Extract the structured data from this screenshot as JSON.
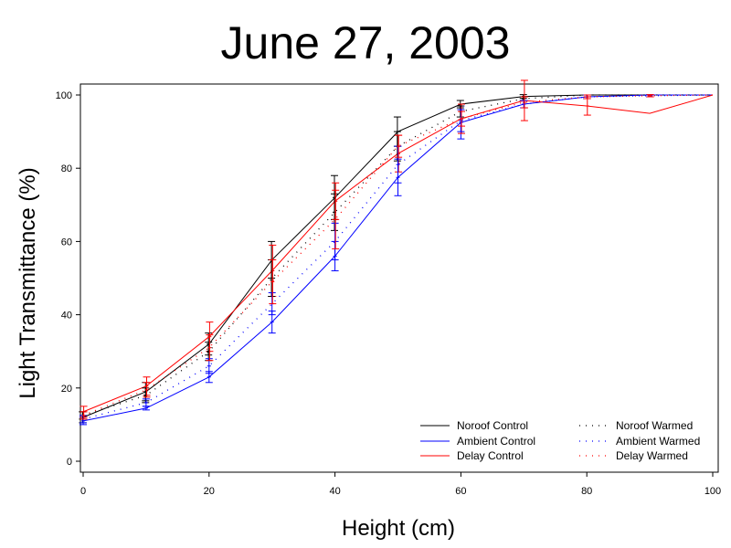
{
  "chart_data": {
    "type": "line",
    "title": "June 27, 2003",
    "xlabel": "Height (cm)",
    "ylabel": "Light Transmittance (%)",
    "xlim": [
      0,
      100
    ],
    "ylim": [
      0,
      100
    ],
    "x_ticks": [
      "0",
      "20",
      "40",
      "60",
      "80",
      "100"
    ],
    "y_ticks": [
      "0",
      "20",
      "40",
      "60",
      "80",
      "100"
    ],
    "x_tick_values": [
      0,
      20,
      40,
      60,
      80,
      100
    ],
    "y_tick_values": [
      0,
      20,
      40,
      60,
      80,
      100
    ],
    "grid": false,
    "legend_position": "bottom-right",
    "x": [
      0,
      10,
      20,
      30,
      40,
      50,
      60,
      70,
      80,
      90,
      100
    ],
    "series": [
      {
        "name": "Noroof Control",
        "color": "#000000",
        "style": "solid",
        "values": [
          12,
          19,
          32,
          55,
          72,
          90,
          97.5,
          99.6,
          100,
          100,
          100
        ],
        "err": [
          1.5,
          2.5,
          3,
          5,
          6,
          4,
          1,
          0.5,
          0,
          0,
          0
        ]
      },
      {
        "name": "Ambient Control",
        "color": "#0000ff",
        "style": "solid",
        "values": [
          11,
          14.5,
          23,
          38,
          56,
          77.5,
          92.5,
          97.5,
          99.5,
          100,
          100
        ],
        "err": [
          1,
          0.5,
          1.5,
          3,
          4,
          5,
          4.5,
          1,
          0.5,
          0,
          0
        ]
      },
      {
        "name": "Delay Control",
        "color": "#ff0000",
        "style": "solid",
        "values": [
          13.5,
          20.5,
          34,
          52,
          71,
          84,
          93.5,
          98.5,
          97,
          95,
          100
        ],
        "err": [
          1.5,
          2.5,
          4,
          7,
          5,
          5,
          4,
          5.5,
          2.5,
          0,
          0
        ]
      },
      {
        "name": "Noroof Warmed",
        "color": "#000000",
        "style": "dotted",
        "values": [
          12.5,
          18,
          30,
          50,
          68,
          86,
          95.5,
          99,
          100,
          100,
          100
        ],
        "err": [
          1,
          2,
          2.5,
          5,
          5,
          4,
          1.5,
          0.5,
          0,
          0,
          0
        ]
      },
      {
        "name": "Ambient Warmed",
        "color": "#0000ff",
        "style": "dotted",
        "values": [
          11.5,
          16,
          26,
          43,
          60,
          81,
          93,
          97.5,
          99.5,
          99.8,
          100
        ],
        "err": [
          1,
          1,
          2,
          3,
          5,
          5,
          3,
          1,
          0.5,
          0.3,
          0
        ]
      },
      {
        "name": "Delay Warmed",
        "color": "#ff0000",
        "style": "dotted",
        "values": [
          12.5,
          19.5,
          31,
          49,
          66,
          86,
          93.5,
          98,
          99.5,
          99.8,
          100
        ],
        "err": [
          1,
          2,
          3.5,
          6,
          8,
          3,
          2,
          1.5,
          0.5,
          0.3,
          0
        ]
      }
    ]
  }
}
